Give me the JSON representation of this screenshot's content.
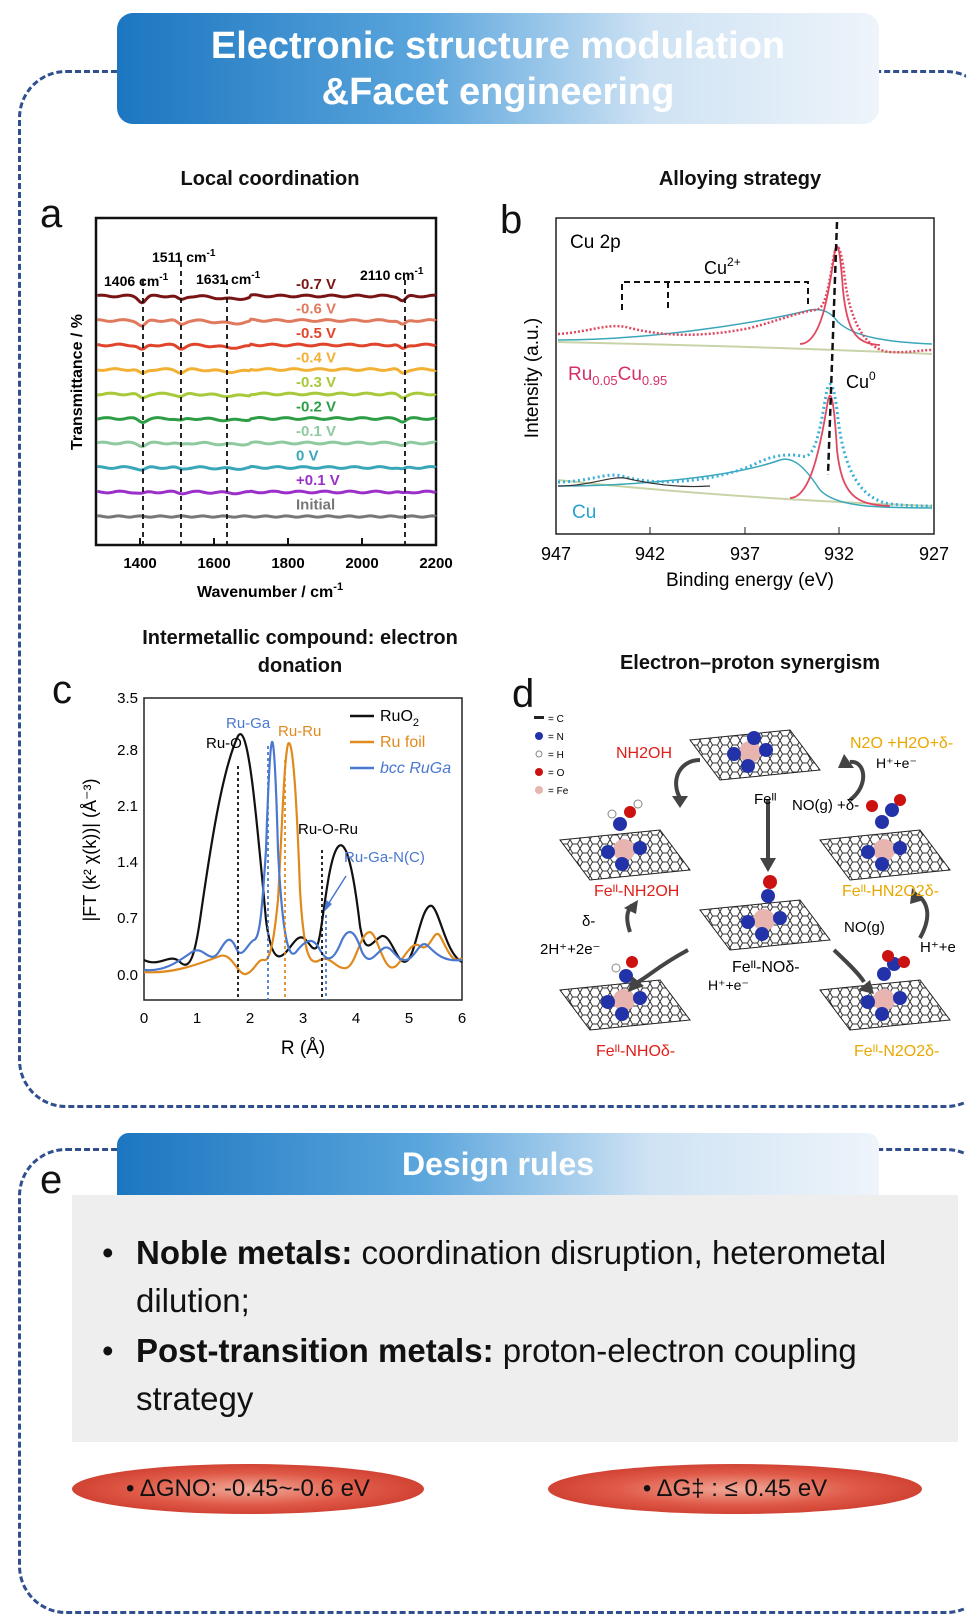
{
  "header": {
    "line1": "Electronic structure modulation",
    "line2": "&Facet engineering"
  },
  "panel_a": {
    "letter": "a",
    "title": "Local coordination",
    "ylabel": "Transmittance / %",
    "xlabel": "Wavenumber / cm",
    "xlabel_sup": "-1",
    "ticks": [
      "1400",
      "1600",
      "1800",
      "2000",
      "2200"
    ],
    "peaks": [
      "1406 cm",
      "1511 cm",
      "1631 cm",
      "2110 cm"
    ],
    "peak_sup": "-1",
    "potentials": [
      "-0.7 V",
      "-0.6 V",
      "-0.5 V",
      "-0.4 V",
      "-0.3 V",
      "-0.2 V",
      "-0.1 V",
      "0 V",
      "+0.1 V",
      "Initial"
    ],
    "colors": [
      "#7a1414",
      "#e07a5f",
      "#e0452c",
      "#f2b134",
      "#a8c93a",
      "#2e9e46",
      "#8fc9a0",
      "#3aa6b9",
      "#9b30c8",
      "#777777"
    ]
  },
  "panel_b": {
    "letter": "b",
    "title": "Alloying strategy",
    "ylabel": "Intensity (a.u.)",
    "xlabel": "Binding energy (eV)",
    "ticks": [
      "947",
      "942",
      "937",
      "932",
      "927"
    ],
    "cu2p": "Cu 2p",
    "cu2plus": "Cu",
    "cu2plus_sup": "2+",
    "cu0": "Cu",
    "cu0_sup": "0",
    "sample1": "Ru",
    "sample1_sub1": "0.05",
    "sample1_mid": "Cu",
    "sample1_sub2": "0.95",
    "sample2": "Cu"
  },
  "panel_c": {
    "letter": "c",
    "title": "Intermetallic compound: electron donation",
    "ylabel": "|FT (k² χ(k))| (Å⁻³)",
    "xlabel": "R (Å)",
    "xticks": [
      "0",
      "1",
      "2",
      "3",
      "4",
      "5",
      "6"
    ],
    "yticks": [
      "0.0",
      "0.7",
      "1.4",
      "2.1",
      "2.8",
      "3.5"
    ],
    "legend": [
      "RuO",
      "Ru foil",
      "bcc RuGa"
    ],
    "legend_sub": "2",
    "annotations": [
      "Ru-O",
      "Ru-Ga",
      "Ru-Ru",
      "Ru-O-Ru",
      "Ru-Ga-N(C)"
    ]
  },
  "panel_d": {
    "letter": "d",
    "title": "Electron–proton synergism",
    "legend": [
      "= C",
      "= N",
      "= H",
      "= O",
      "= Fe"
    ],
    "labels": {
      "nh2oh": "NH2OH",
      "n2o": "N2O +H2O+δ-",
      "hplus_e1": "H⁺+e⁻",
      "feii": "Feᴵᴵ",
      "no_g": "NO(g) +δ-",
      "fe_nh2oh": "Feᴵᴵ-NH2OH",
      "fe_hn2o2": "Feᴵᴵ-HN2O2δ-",
      "delta": "δ-",
      "two_h": "2H⁺+2e⁻",
      "fe_no": "Feᴵᴵ-NOδ-",
      "no_g2": "NO(g)",
      "hplus_e2": "H⁺+e",
      "hplus_e3": "H⁺+e⁻",
      "fe_nho": "Feᴵᴵ-NHOδ-",
      "fe_n2o2": "Feᴵᴵ-N2O2δ-"
    }
  },
  "panel_e": {
    "letter": "e",
    "banner": "Design rules",
    "rule1_bold": "Noble metals:",
    "rule1_text": " coordination disruption, heterometal dilution;",
    "rule2_bold": "Post-transition metals:",
    "rule2_text": " proton-electron coupling strategy",
    "pill1": "•   ΔGNO:  -0.45~-0.6 eV",
    "pill2": "•   ΔG‡ : ≤ 0.45 eV"
  }
}
